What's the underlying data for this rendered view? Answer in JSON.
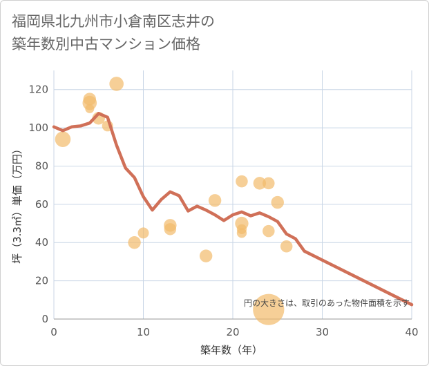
{
  "title": {
    "line1": "福岡県北九州市小倉南区志井の",
    "line2": "築年数別中古マンション価格"
  },
  "colors": {
    "bubble": "#f2bb6b",
    "line": "#d07058",
    "grid": "#c9d6e6",
    "plot_bg": "#ffffff"
  },
  "chart_data": {
    "type": "scatter",
    "title": "福岡県北九州市小倉南区志井の 築年数別中古マンション価格",
    "xlabel": "築年数（年）",
    "ylabel": "坪（3.3㎡）単価（万円）",
    "xlim": [
      0,
      40
    ],
    "ylim": [
      0,
      130
    ],
    "x_ticks": [
      0,
      10,
      20,
      30,
      40
    ],
    "y_ticks": [
      0,
      20,
      40,
      60,
      80,
      100,
      120
    ],
    "x_tick_labels": [
      "0",
      "10",
      "20",
      "30",
      "40"
    ],
    "y_tick_labels": [
      "0",
      "20",
      "40",
      "60",
      "80",
      "100",
      "120"
    ],
    "grid": true,
    "note": "円の大きさは、取引のあった物件面積を示す",
    "scatter": [
      {
        "x": 1,
        "y": 94,
        "size": 3
      },
      {
        "x": 4,
        "y": 115,
        "size": 2
      },
      {
        "x": 4,
        "y": 113,
        "size": 2.5
      },
      {
        "x": 4,
        "y": 110,
        "size": 1
      },
      {
        "x": 5,
        "y": 105,
        "size": 2
      },
      {
        "x": 6,
        "y": 101,
        "size": 1.5
      },
      {
        "x": 7,
        "y": 123,
        "size": 2.5
      },
      {
        "x": 9,
        "y": 40,
        "size": 2
      },
      {
        "x": 10,
        "y": 45,
        "size": 1.5
      },
      {
        "x": 13,
        "y": 49,
        "size": 2
      },
      {
        "x": 13,
        "y": 47,
        "size": 1.8
      },
      {
        "x": 17,
        "y": 33,
        "size": 2
      },
      {
        "x": 18,
        "y": 62,
        "size": 2
      },
      {
        "x": 21,
        "y": 72,
        "size": 1.8
      },
      {
        "x": 21,
        "y": 50,
        "size": 2.2
      },
      {
        "x": 21,
        "y": 47,
        "size": 1.2
      },
      {
        "x": 21,
        "y": 45,
        "size": 1.2
      },
      {
        "x": 23,
        "y": 71,
        "size": 2
      },
      {
        "x": 24,
        "y": 71,
        "size": 1.8
      },
      {
        "x": 24,
        "y": 46,
        "size": 1.8
      },
      {
        "x": 24,
        "y": 5,
        "size": 12
      },
      {
        "x": 25,
        "y": 61,
        "size": 2
      },
      {
        "x": 26,
        "y": 38,
        "size": 1.8
      }
    ],
    "series": [
      {
        "x": [
          0,
          1,
          2,
          3,
          4,
          5,
          6,
          7,
          8,
          9,
          10,
          11,
          12,
          13,
          14,
          15,
          16,
          17,
          18,
          19,
          20,
          21,
          22,
          23,
          24,
          25,
          26,
          27,
          28,
          40
        ],
        "values": [
          100.5,
          98.5,
          100.5,
          101,
          102.5,
          107.5,
          105.5,
          91,
          79,
          74,
          64,
          57,
          62.5,
          66.5,
          64.5,
          56.5,
          59,
          57,
          54.5,
          51.5,
          54.5,
          56,
          54,
          55.5,
          53.5,
          51,
          44.5,
          42,
          35.5,
          7.5
        ]
      }
    ]
  }
}
